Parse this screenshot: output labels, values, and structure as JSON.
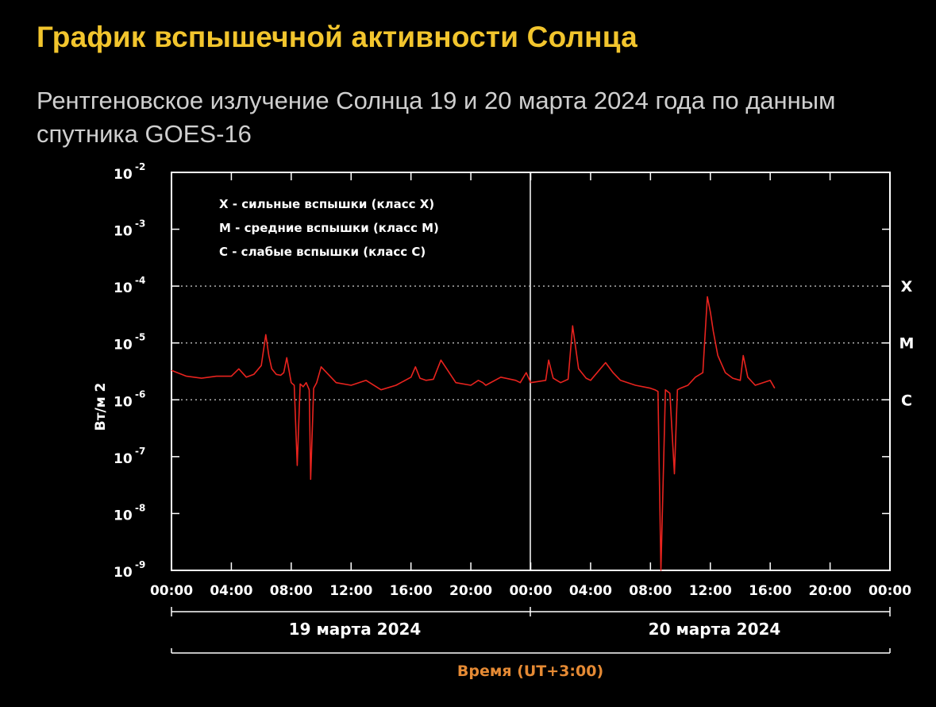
{
  "header": {
    "title": "График вспышечной активности Солнца",
    "subtitle": "Рентгеновское излучение Солнца 19 и 20 марта 2024 года по данным спутника GOES-16"
  },
  "chart_data": {
    "type": "line",
    "yscale": "log",
    "ylim": [
      1e-09,
      0.01
    ],
    "xlim": [
      "2024-03-19 00:00",
      "2024-03-21 00:00"
    ],
    "ylabel": "Вт/м 2",
    "xlabel": "Время (UT+3:00)",
    "y_ticks": [
      {
        "base": "10",
        "exp": "-2",
        "value": 0.01
      },
      {
        "base": "10",
        "exp": "-3",
        "value": 0.001
      },
      {
        "base": "10",
        "exp": "-4",
        "value": 0.0001
      },
      {
        "base": "10",
        "exp": "-5",
        "value": 1e-05
      },
      {
        "base": "10",
        "exp": "-6",
        "value": 1e-06
      },
      {
        "base": "10",
        "exp": "-7",
        "value": 1e-07
      },
      {
        "base": "10",
        "exp": "-8",
        "value": 1e-08
      },
      {
        "base": "10",
        "exp": "-9",
        "value": 1e-09
      }
    ],
    "x_ticks": [
      "00:00",
      "04:00",
      "08:00",
      "12:00",
      "16:00",
      "20:00",
      "00:00",
      "04:00",
      "08:00",
      "12:00",
      "16:00",
      "20:00",
      "00:00"
    ],
    "days": [
      "19 марта 2024",
      "20 марта 2024"
    ],
    "class_levels": [
      {
        "label": "X",
        "value": 0.0001
      },
      {
        "label": "M",
        "value": 1e-05
      },
      {
        "label": "C",
        "value": 1e-06
      }
    ],
    "legend": [
      "X  - сильные вспышки (класс X)",
      "M  - средние вспышки (класс M)",
      "C  - слабые вспышки (класс C)"
    ],
    "grid": "dotted lines at class levels",
    "line_color": "#e8231e",
    "series": [
      {
        "x": [
          0.0,
          1.0,
          2.0,
          3.0,
          4.0,
          4.5,
          5.0,
          5.5,
          6.0,
          6.3,
          6.5,
          6.7,
          7.0,
          7.3,
          7.5,
          7.7,
          8.0,
          8.2,
          8.4,
          8.6,
          8.8,
          9.0,
          9.2,
          9.3,
          9.5,
          9.7,
          10.0,
          11.0,
          12.0,
          13.0,
          14.0,
          15.0,
          16.0,
          16.3,
          16.6,
          17.0,
          17.5,
          18.0,
          19.0,
          20.0,
          20.5,
          20.8,
          21.0,
          22.0,
          23.0,
          23.3,
          23.7,
          24.0,
          25.0,
          25.2,
          25.5,
          26.0,
          26.5,
          26.8,
          27.2,
          27.7,
          28.0,
          29.0,
          29.5,
          30.0,
          31.0,
          32.0,
          32.3,
          32.5,
          32.7,
          33.0,
          33.3,
          33.6,
          33.8,
          34.0,
          34.5,
          35.0,
          35.5,
          35.8,
          36.0,
          36.2,
          36.5,
          37.0,
          37.5,
          38.0,
          38.2,
          38.5,
          39.0,
          40.0,
          40.3
        ],
        "y": [
          3.3e-06,
          2.6e-06,
          2.4e-06,
          2.6e-06,
          2.6e-06,
          3.5e-06,
          2.5e-06,
          2.8e-06,
          4e-06,
          1.4e-05,
          6e-06,
          3.5e-06,
          2.8e-06,
          2.7e-06,
          3e-06,
          5.5e-06,
          2e-06,
          1.8e-06,
          7e-08,
          1.9e-06,
          1.7e-06,
          2e-06,
          1.5e-06,
          4e-08,
          1.6e-06,
          2e-06,
          3.8e-06,
          2e-06,
          1.8e-06,
          2.2e-06,
          1.5e-06,
          1.8e-06,
          2.5e-06,
          3.8e-06,
          2.4e-06,
          2.2e-06,
          2.3e-06,
          5e-06,
          2e-06,
          1.8e-06,
          2.2e-06,
          2e-06,
          1.8e-06,
          2.5e-06,
          2.2e-06,
          2e-06,
          3e-06,
          2e-06,
          2.2e-06,
          5e-06,
          2.4e-06,
          2e-06,
          2.3e-06,
          2e-05,
          3.5e-06,
          2.4e-06,
          2.2e-06,
          4.5e-06,
          3e-06,
          2.2e-06,
          1.8e-06,
          1.6e-06,
          1.5e-06,
          1.4e-06,
          1e-09,
          1.5e-06,
          1.3e-06,
          5e-08,
          1.5e-06,
          1.6e-06,
          1.8e-06,
          2.5e-06,
          3e-06,
          6.5e-05,
          3.5e-05,
          1.6e-05,
          6e-06,
          3e-06,
          2.4e-06,
          2.2e-06,
          6e-06,
          2.5e-06,
          1.8e-06,
          2.2e-06,
          1.6e-06
        ]
      }
    ]
  }
}
